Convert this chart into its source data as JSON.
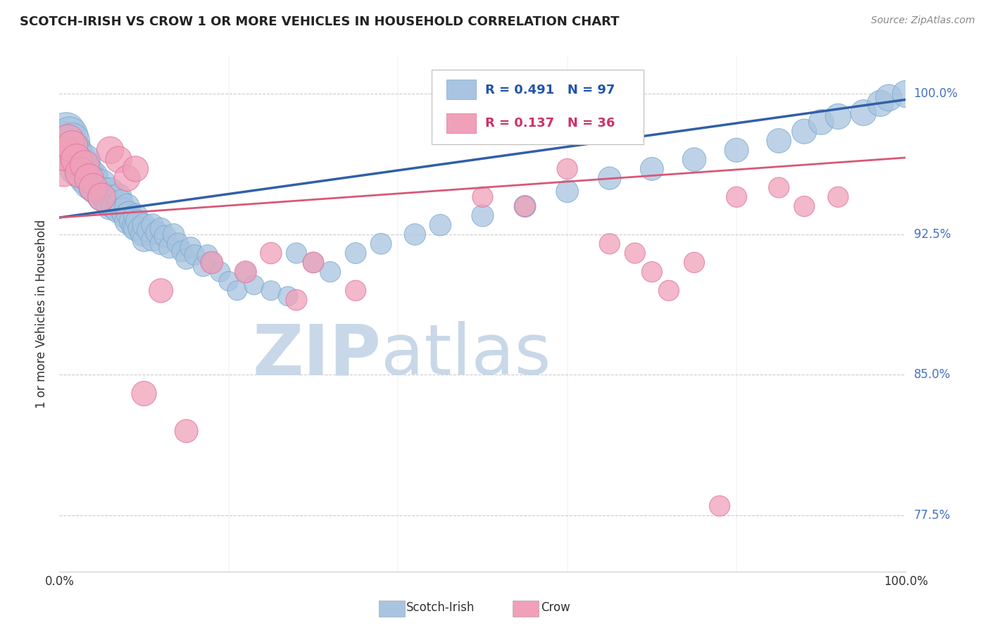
{
  "title": "SCOTCH-IRISH VS CROW 1 OR MORE VEHICLES IN HOUSEHOLD CORRELATION CHART",
  "source": "Source: ZipAtlas.com",
  "ylabel": "1 or more Vehicles in Household",
  "ytick_labels": [
    "100.0%",
    "92.5%",
    "85.0%",
    "77.5%"
  ],
  "ytick_values": [
    1.0,
    0.925,
    0.85,
    0.775
  ],
  "xmin": 0.0,
  "xmax": 1.0,
  "ymin": 0.745,
  "ymax": 1.02,
  "blue_label": "Scotch-Irish",
  "pink_label": "Crow",
  "blue_R": 0.491,
  "blue_N": 97,
  "pink_R": 0.137,
  "pink_N": 36,
  "blue_color": "#a8c4e0",
  "blue_edge_color": "#7aaace",
  "blue_line_color": "#3060a8",
  "pink_color": "#f0a0b8",
  "pink_edge_color": "#e070a0",
  "pink_line_color": "#d85878",
  "watermark_zip_color": "#c8d8e8",
  "watermark_atlas_color": "#c8d8e8",
  "background_color": "#ffffff",
  "grid_color": "#cccccc",
  "blue_line_x": [
    0.0,
    1.0
  ],
  "blue_line_y": [
    0.934,
    0.997
  ],
  "pink_line_x": [
    0.0,
    1.0
  ],
  "pink_line_y": [
    0.934,
    0.966
  ],
  "blue_scatter_x": [
    0.005,
    0.008,
    0.01,
    0.012,
    0.015,
    0.015,
    0.018,
    0.018,
    0.02,
    0.02,
    0.022,
    0.025,
    0.025,
    0.028,
    0.03,
    0.03,
    0.03,
    0.032,
    0.035,
    0.035,
    0.038,
    0.04,
    0.04,
    0.042,
    0.045,
    0.05,
    0.05,
    0.052,
    0.055,
    0.058,
    0.06,
    0.06,
    0.062,
    0.065,
    0.07,
    0.07,
    0.072,
    0.075,
    0.078,
    0.08,
    0.08,
    0.082,
    0.085,
    0.088,
    0.09,
    0.09,
    0.092,
    0.095,
    0.098,
    0.1,
    0.1,
    0.105,
    0.11,
    0.11,
    0.115,
    0.12,
    0.12,
    0.125,
    0.13,
    0.135,
    0.14,
    0.145,
    0.15,
    0.155,
    0.16,
    0.17,
    0.175,
    0.18,
    0.19,
    0.2,
    0.21,
    0.22,
    0.23,
    0.25,
    0.27,
    0.28,
    0.3,
    0.32,
    0.35,
    0.38,
    0.42,
    0.45,
    0.5,
    0.55,
    0.6,
    0.65,
    0.7,
    0.75,
    0.8,
    0.85,
    0.88,
    0.9,
    0.92,
    0.95,
    0.97,
    0.98,
    1.0
  ],
  "blue_scatter_y": [
    0.975,
    0.98,
    0.972,
    0.978,
    0.968,
    0.975,
    0.965,
    0.97,
    0.96,
    0.968,
    0.963,
    0.958,
    0.965,
    0.962,
    0.955,
    0.96,
    0.965,
    0.958,
    0.952,
    0.958,
    0.955,
    0.95,
    0.956,
    0.953,
    0.948,
    0.945,
    0.952,
    0.948,
    0.945,
    0.942,
    0.94,
    0.948,
    0.944,
    0.94,
    0.938,
    0.945,
    0.942,
    0.938,
    0.935,
    0.932,
    0.94,
    0.936,
    0.932,
    0.929,
    0.928,
    0.935,
    0.932,
    0.928,
    0.925,
    0.922,
    0.93,
    0.927,
    0.922,
    0.93,
    0.926,
    0.92,
    0.928,
    0.924,
    0.918,
    0.925,
    0.92,
    0.916,
    0.912,
    0.918,
    0.914,
    0.908,
    0.914,
    0.91,
    0.905,
    0.9,
    0.895,
    0.905,
    0.898,
    0.895,
    0.892,
    0.915,
    0.91,
    0.905,
    0.915,
    0.92,
    0.925,
    0.93,
    0.935,
    0.94,
    0.948,
    0.955,
    0.96,
    0.965,
    0.97,
    0.975,
    0.98,
    0.985,
    0.988,
    0.99,
    0.995,
    0.998,
    1.0
  ],
  "blue_scatter_sizes": [
    80,
    75,
    70,
    70,
    65,
    65,
    60,
    60,
    58,
    58,
    55,
    55,
    55,
    52,
    50,
    50,
    50,
    48,
    48,
    48,
    45,
    45,
    45,
    43,
    43,
    42,
    42,
    40,
    40,
    40,
    38,
    38,
    38,
    36,
    36,
    36,
    34,
    34,
    34,
    32,
    32,
    32,
    30,
    30,
    30,
    30,
    28,
    28,
    28,
    28,
    28,
    26,
    26,
    26,
    26,
    25,
    25,
    25,
    24,
    24,
    24,
    23,
    23,
    23,
    22,
    22,
    22,
    21,
    21,
    20,
    20,
    20,
    20,
    20,
    20,
    22,
    22,
    22,
    23,
    23,
    24,
    24,
    25,
    25,
    26,
    27,
    28,
    29,
    30,
    31,
    32,
    33,
    34,
    35,
    36,
    37,
    38
  ],
  "pink_scatter_x": [
    0.005,
    0.008,
    0.01,
    0.015,
    0.02,
    0.025,
    0.03,
    0.035,
    0.04,
    0.05,
    0.06,
    0.07,
    0.08,
    0.09,
    0.1,
    0.12,
    0.15,
    0.18,
    0.22,
    0.25,
    0.28,
    0.3,
    0.35,
    0.5,
    0.55,
    0.6,
    0.65,
    0.68,
    0.7,
    0.72,
    0.75,
    0.78,
    0.8,
    0.85,
    0.88,
    0.92
  ],
  "pink_scatter_y": [
    0.96,
    0.968,
    0.975,
    0.972,
    0.965,
    0.958,
    0.962,
    0.955,
    0.95,
    0.945,
    0.97,
    0.965,
    0.955,
    0.96,
    0.84,
    0.895,
    0.82,
    0.91,
    0.905,
    0.915,
    0.89,
    0.91,
    0.895,
    0.945,
    0.94,
    0.96,
    0.92,
    0.915,
    0.905,
    0.895,
    0.91,
    0.78,
    0.945,
    0.95,
    0.94,
    0.945
  ],
  "pink_scatter_sizes": [
    65,
    60,
    55,
    52,
    50,
    48,
    45,
    43,
    42,
    40,
    38,
    36,
    35,
    34,
    32,
    30,
    28,
    26,
    25,
    24,
    23,
    23,
    22,
    22,
    22,
    22,
    22,
    22,
    22,
    22,
    22,
    22,
    22,
    22,
    22,
    22
  ]
}
